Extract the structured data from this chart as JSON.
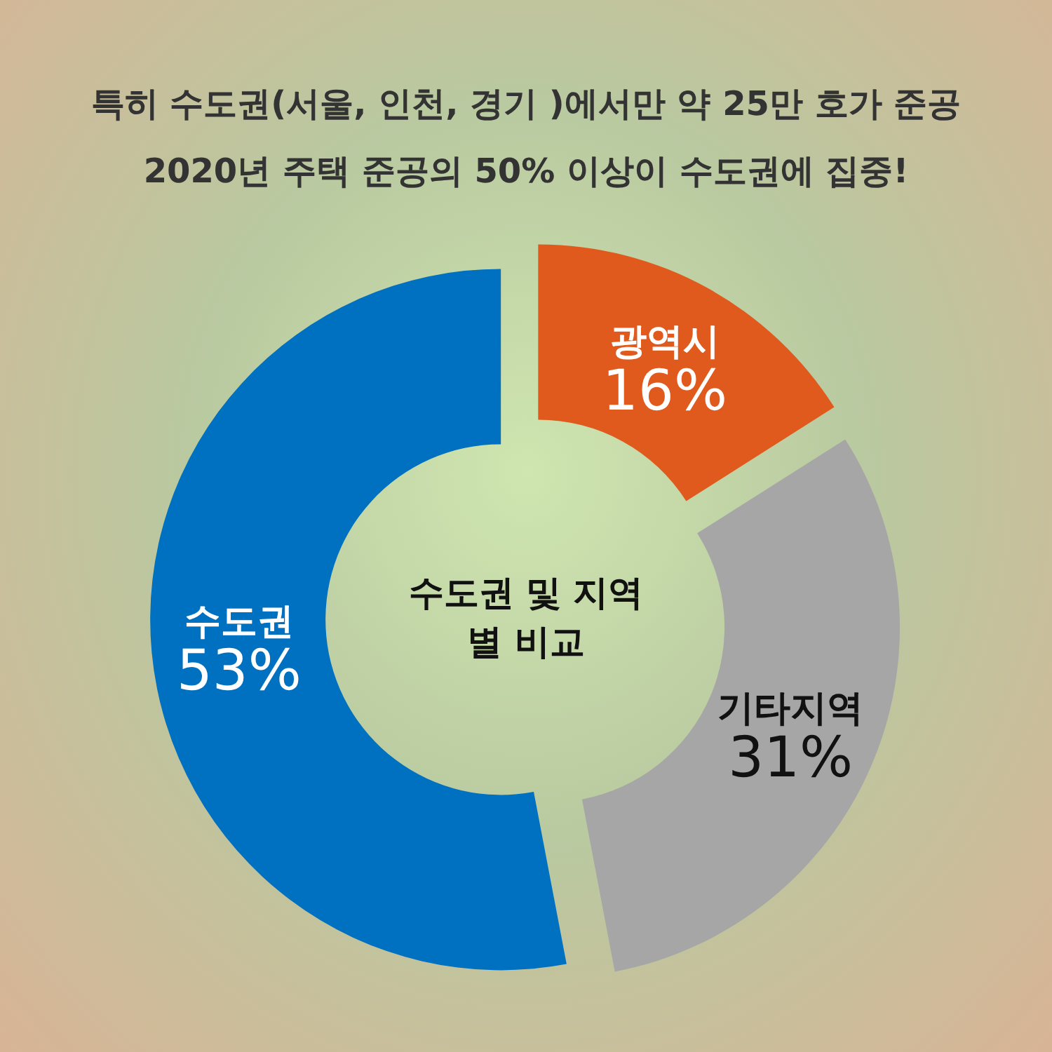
{
  "chart_data": {
    "type": "donut",
    "title": "특히 수도권(서울, 인천, 경기 )에서만 약 25만 호가 준공",
    "subtitle": "2020년 주택 준공의 50% 이상이 수도권에 집중!",
    "categories": [
      "광역시",
      "기타지역",
      "수도권"
    ],
    "values": [
      16,
      31,
      53
    ],
    "colors": [
      "#e05a1e",
      "#a6a6a6",
      "#0070c0"
    ],
    "value_labels": [
      "16%",
      "31%",
      "53%"
    ],
    "annotations": [
      "수도권 및 지역별 비교"
    ],
    "legend": false
  }
}
